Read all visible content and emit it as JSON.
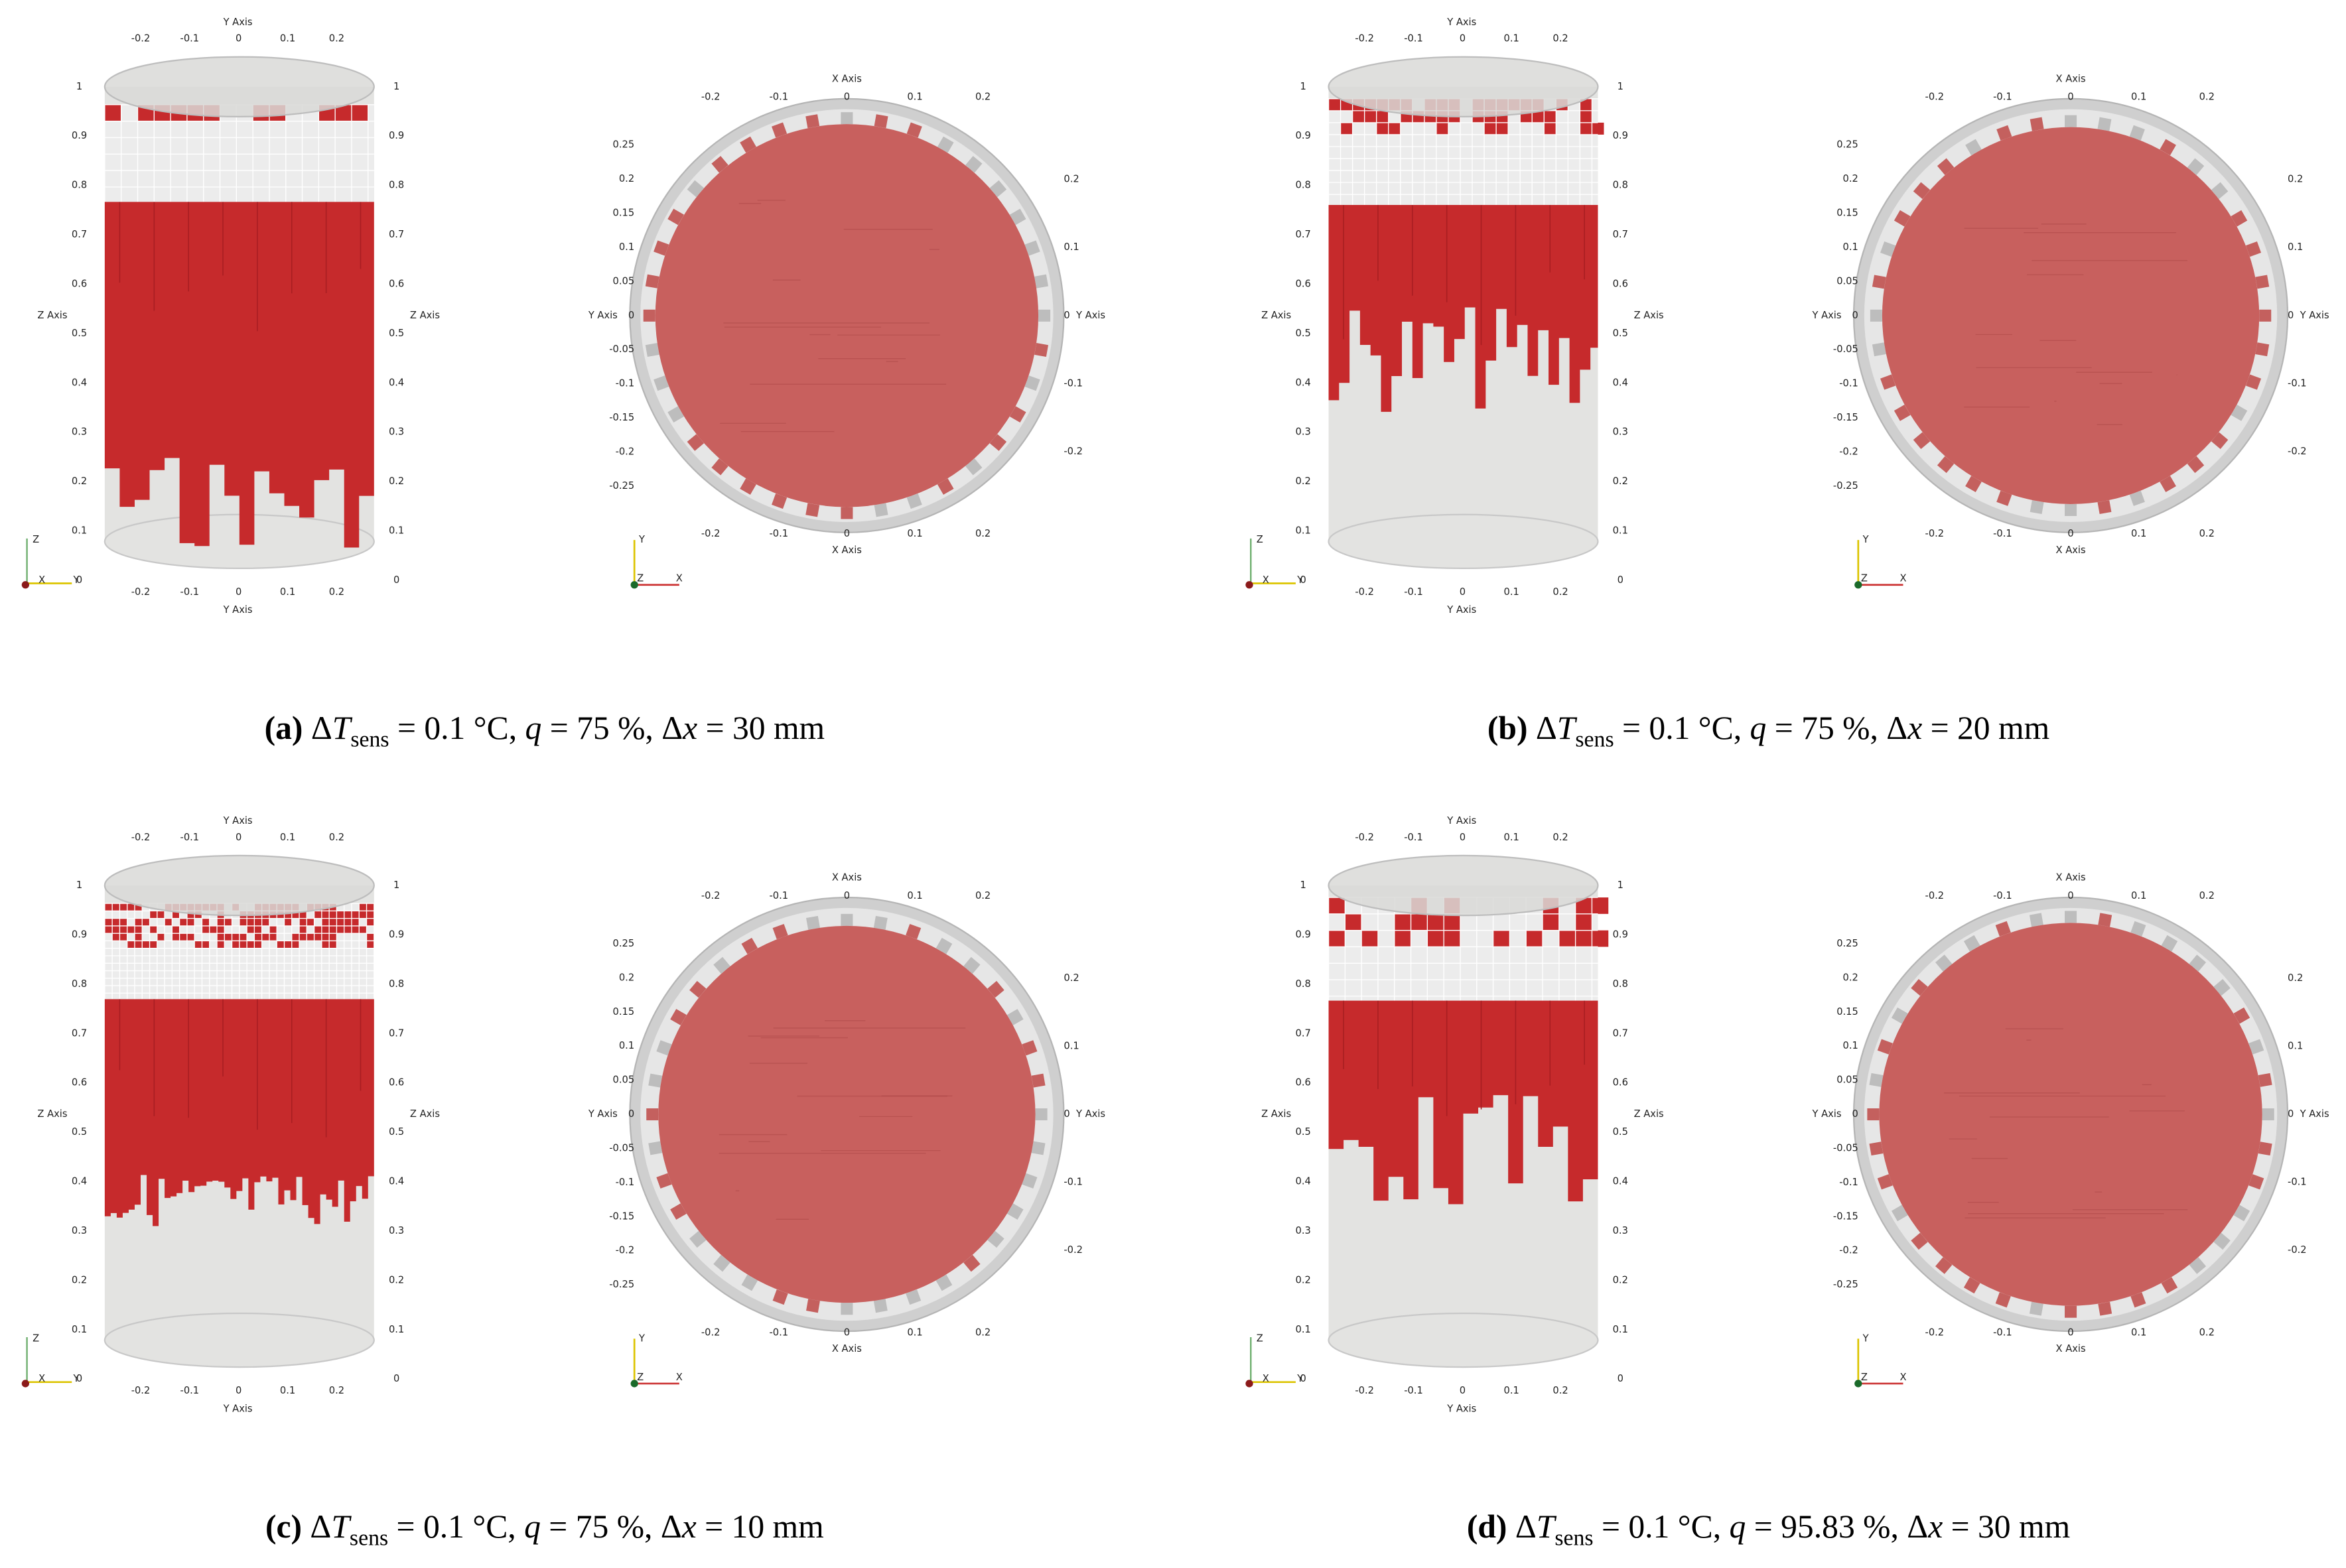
{
  "axis_titles": {
    "x": "X Axis",
    "y": "Y Axis",
    "z": "Z Axis"
  },
  "side_view": {
    "y_ticks": [
      "-0.2",
      "-0.1",
      "0",
      "0.1",
      "0.2"
    ],
    "z_ticks": [
      "1",
      "0.9",
      "0.8",
      "0.7",
      "0.6",
      "0.5",
      "0.4",
      "0.3",
      "0.2",
      "0.1",
      "0"
    ]
  },
  "top_view": {
    "x_ticks": [
      "-0.2",
      "-0.1",
      "0",
      "0.1",
      "0.2"
    ],
    "y_ticks_left": [
      "0.25",
      "0.2",
      "0.15",
      "0.1",
      "0.05",
      "0",
      "-0.05",
      "-0.1",
      "-0.15",
      "-0.2",
      "-0.25"
    ],
    "y_ticks_right": [
      "0.2",
      "0.1",
      "0",
      "-0.1",
      "-0.2"
    ]
  },
  "triad": {
    "x": "X",
    "y": "Y",
    "z": "Z"
  },
  "panels": [
    {
      "caption": [
        "(a)",
        " Δ",
        "T",
        "sens",
        " = 0.1 °C, ",
        "q",
        " = 75 %, Δ",
        "x",
        " = 30 mm"
      ]
    },
    {
      "caption": [
        "(b)",
        " Δ",
        "T",
        "sens",
        " = 0.1 °C, ",
        "q",
        " = 75 %, Δ",
        "x",
        " = 20 mm"
      ]
    },
    {
      "caption": [
        "(c)",
        " Δ",
        "T",
        "sens",
        " = 0.1 °C, ",
        "q",
        " = 75 %, Δ",
        "x",
        " = 10 mm"
      ]
    },
    {
      "caption": [
        "(d)",
        " Δ",
        "T",
        "sens",
        " = 0.1 °C, ",
        "q",
        " = 95.83 %, Δ",
        "x",
        " = 30 mm"
      ]
    }
  ]
}
